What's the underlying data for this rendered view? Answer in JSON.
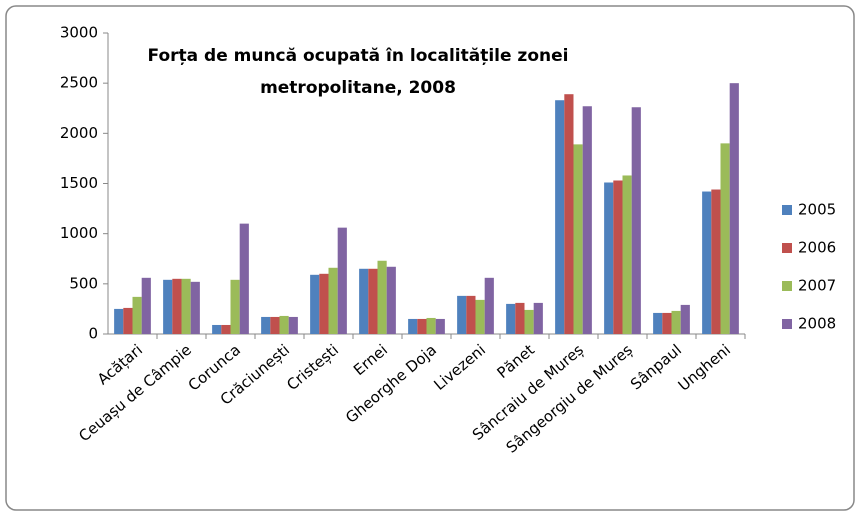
{
  "chart_data": {
    "type": "bar",
    "title": [
      "Forța de muncă ocupată în localitățile zonei",
      "metropolitane, 2008"
    ],
    "categories": [
      "Acățari",
      "Ceuașu de Câmpie",
      "Corunca",
      "Crăciunești",
      "Cristești",
      "Ernei",
      "Gheorghe Doja",
      "Livezeni",
      "Pănet",
      "Sâncraiu de Mureș",
      "Sângeorgiu de Mureș",
      "Sânpaul",
      "Ungheni"
    ],
    "series": [
      {
        "name": "2005",
        "color": "#4f81bd",
        "values": [
          250,
          540,
          90,
          170,
          590,
          650,
          150,
          380,
          300,
          2330,
          1510,
          210,
          1420
        ]
      },
      {
        "name": "2006",
        "color": "#c0504d",
        "values": [
          260,
          550,
          90,
          170,
          600,
          650,
          150,
          380,
          310,
          2390,
          1530,
          210,
          1440
        ]
      },
      {
        "name": "2007",
        "color": "#9bbb59",
        "values": [
          370,
          550,
          540,
          180,
          660,
          730,
          160,
          340,
          240,
          1890,
          1580,
          230,
          1900
        ]
      },
      {
        "name": "2008",
        "color": "#8064a2",
        "values": [
          560,
          520,
          1100,
          170,
          1060,
          670,
          150,
          560,
          310,
          2270,
          2260,
          290,
          2500
        ]
      }
    ],
    "ylim": [
      0,
      3000
    ],
    "yticks": [
      0,
      500,
      1000,
      1500,
      2000,
      2500,
      3000
    ],
    "grid": false,
    "legend": "right"
  }
}
